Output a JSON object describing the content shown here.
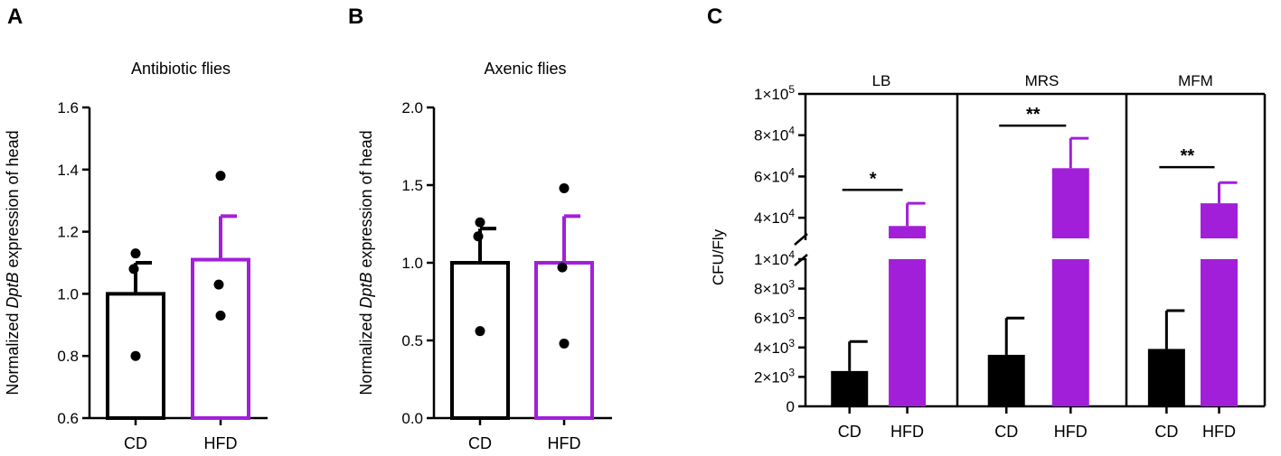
{
  "figure": {
    "panels": [
      "A",
      "B",
      "C"
    ]
  },
  "colors": {
    "cd": "#000000",
    "hfd": "#a21fd9",
    "axis": "#000000"
  },
  "chart_data": [
    {
      "id": "A",
      "type": "bar",
      "style": "hollow",
      "title": "Antibiotic  flies",
      "ylabel": {
        "pre": "Normalized ",
        "gene": "DptB",
        "post": " expression of head"
      },
      "ylim": [
        0.6,
        1.6
      ],
      "yticks": [
        "0.6",
        "0.8",
        "1.0",
        "1.2",
        "1.4",
        "1.6"
      ],
      "categories": [
        "CD",
        "HFD"
      ],
      "values": [
        1.0,
        1.11
      ],
      "errors": [
        0.1,
        0.14
      ],
      "points": [
        [
          1.13,
          1.08,
          0.8
        ],
        [
          1.38,
          1.03,
          0.93
        ]
      ]
    },
    {
      "id": "B",
      "type": "bar",
      "style": "hollow",
      "title": "Axenic flies",
      "ylabel": {
        "pre": "Normalized ",
        "gene": "DptB",
        "post": " expression of head"
      },
      "ylim": [
        0.0,
        2.0
      ],
      "yticks": [
        "0.0",
        "0.5",
        "1.0",
        "1.5",
        "2.0"
      ],
      "categories": [
        "CD",
        "HFD"
      ],
      "values": [
        1.0,
        1.0
      ],
      "errors": [
        0.22,
        0.3
      ],
      "points": [
        [
          1.26,
          1.17,
          0.56
        ],
        [
          1.48,
          0.97,
          0.48
        ]
      ]
    },
    {
      "id": "C",
      "type": "bar",
      "style": "filled",
      "ylabel": "CFU/Fly",
      "axis_break": {
        "lower": [
          0,
          10000
        ],
        "upper": [
          30000,
          100000
        ]
      },
      "yticks_lower": [
        {
          "v": 0,
          "mant": "0",
          "exp": ""
        },
        {
          "v": 2000,
          "mant": "2×10",
          "exp": "3"
        },
        {
          "v": 4000,
          "mant": "4×10",
          "exp": "3"
        },
        {
          "v": 6000,
          "mant": "6×10",
          "exp": "3"
        },
        {
          "v": 8000,
          "mant": "8×10",
          "exp": "3"
        },
        {
          "v": 10000,
          "mant": "1×10",
          "exp": "4"
        }
      ],
      "yticks_upper": [
        {
          "v": 40000,
          "mant": "4×10",
          "exp": "4"
        },
        {
          "v": 60000,
          "mant": "6×10",
          "exp": "4"
        },
        {
          "v": 80000,
          "mant": "8×10",
          "exp": "4"
        },
        {
          "v": 100000,
          "mant": "1×10",
          "exp": "5"
        }
      ],
      "groups": [
        {
          "name": "LB",
          "categories": [
            "CD",
            "HFD"
          ],
          "values": [
            2400,
            36000
          ],
          "errors": [
            2000,
            11000
          ],
          "significance": "*"
        },
        {
          "name": "MRS",
          "categories": [
            "CD",
            "HFD"
          ],
          "values": [
            3500,
            64000
          ],
          "errors": [
            2500,
            14500
          ],
          "significance": "**"
        },
        {
          "name": "MFM",
          "categories": [
            "CD",
            "HFD"
          ],
          "values": [
            3900,
            47000
          ],
          "errors": [
            2600,
            10000
          ],
          "significance": "**"
        }
      ]
    }
  ]
}
